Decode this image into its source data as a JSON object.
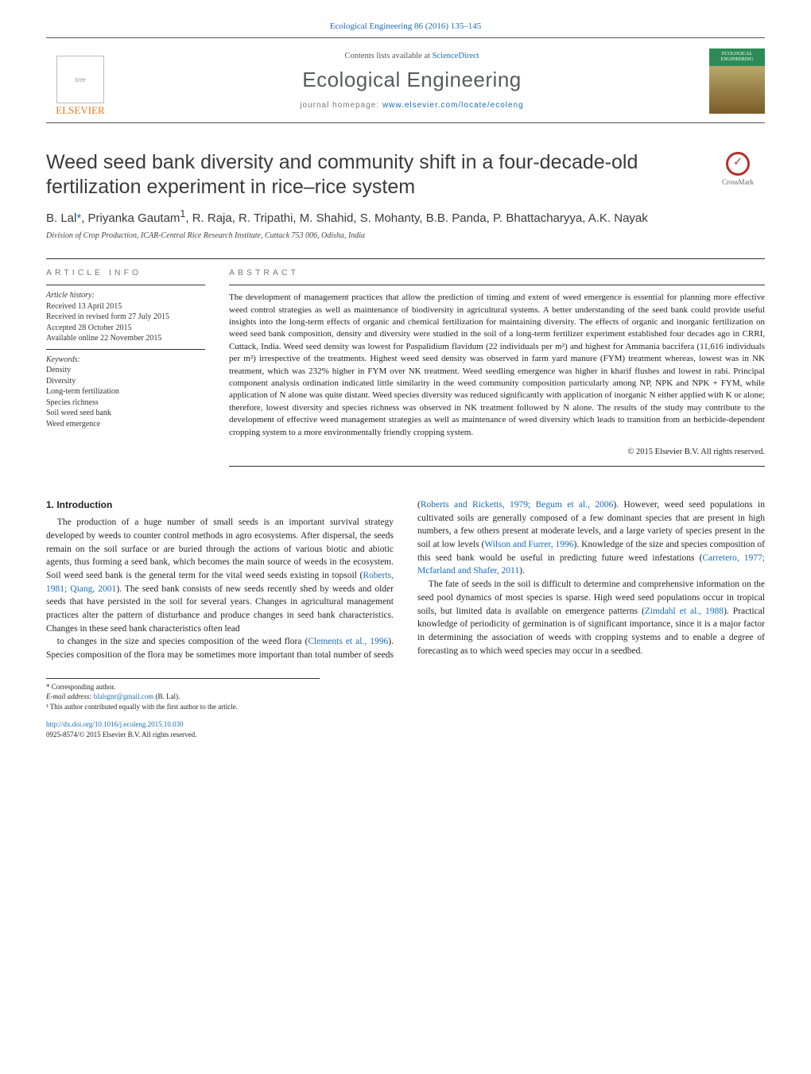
{
  "journal_ref": "Ecological Engineering 86 (2016) 135–145",
  "masthead": {
    "publisher_name": "ELSEVIER",
    "contents_prefix": "Contents lists available at ",
    "contents_link": "ScienceDirect",
    "journal_name": "Ecological Engineering",
    "homepage_prefix": "journal homepage: ",
    "homepage_url": "www.elsevier.com/locate/ecoleng",
    "cover_label": "ECOLOGICAL ENGINEERING"
  },
  "title": "Weed seed bank diversity and community shift in a four-decade-old fertilization experiment in rice–rice system",
  "crossmark_label": "CrossMark",
  "authors_html": "B. Lal<span class='corr'>*</span>, Priyanka Gautam<sup>1</sup>, R. Raja, R. Tripathi, M. Shahid, S. Mohanty, B.B. Panda, P. Bhattacharyya, A.K. Nayak",
  "affiliation": "Division of Crop Production, ICAR-Central Rice Research Institute, Cuttack 753 006, Odisha, India",
  "article_info": {
    "header": "ARTICLE INFO",
    "history_label": "Article history:",
    "history": [
      "Received 13 April 2015",
      "Received in revised form 27 July 2015",
      "Accepted 28 October 2015",
      "Available online 22 November 2015"
    ],
    "keywords_label": "Keywords:",
    "keywords": [
      "Density",
      "Diversity",
      "Long-term fertilization",
      "Species richness",
      "Soil weed seed bank",
      "Weed emergence"
    ]
  },
  "abstract": {
    "header": "ABSTRACT",
    "text": "The development of management practices that allow the prediction of timing and extent of weed emergence is essential for planning more effective weed control strategies as well as maintenance of biodiversity in agricultural systems. A better understanding of the seed bank could provide useful insights into the long-term effects of organic and chemical fertilization for maintaining diversity. The effects of organic and inorganic fertilization on weed seed bank composition, density and diversity were studied in the soil of a long-term fertilizer experiment established four decades ago in CRRI, Cuttack, India. Weed seed density was lowest for Paspalidium flavidum (22 individuals per m²) and highest for Ammania baccifera (11,616 individuals per m²) irrespective of the treatments. Highest weed seed density was observed in farm yard manure (FYM) treatment whereas, lowest was in NK treatment, which was 232% higher in FYM over NK treatment. Weed seedling emergence was higher in kharif flushes and lowest in rabi. Principal component analysis ordination indicated little similarity in the weed community composition particularly among NP, NPK and NPK + FYM, while application of N alone was quite distant. Weed species diversity was reduced significantly with application of inorganic N either applied with K or alone; therefore, lowest diversity and species richness was observed in NK treatment followed by N alone. The results of the study may contribute to the development of effective weed management strategies as well as maintenance of weed diversity which leads to transition from an herbicide-dependent cropping system to a more environmentally friendly cropping system.",
    "copyright": "© 2015 Elsevier B.V. All rights reserved."
  },
  "intro": {
    "heading": "1. Introduction",
    "p1_a": "The production of a huge number of small seeds is an important survival strategy developed by weeds to counter control methods in agro ecosystems. After dispersal, the seeds remain on the soil surface or are buried through the actions of various biotic and abiotic agents, thus forming a seed bank, which becomes the main source of weeds in the ecosystem. Soil weed seed bank is the general term for the vital weed seeds existing in topsoil (",
    "p1_cite1": "Roberts, 1981; Qiang, 2001",
    "p1_b": "). The seed bank consists of new seeds recently shed by weeds and older seeds that have persisted in the soil for several years. Changes in agricultural management practices alter the pattern of disturbance and produce changes in seed bank characteristics. Changes in these seed bank characteristics often lead",
    "p2_a": "to changes in the size and species composition of the weed flora (",
    "p2_cite1": "Clements et al., 1996",
    "p2_b": "). Species composition of the flora may be sometimes more important than total number of seeds (",
    "p2_cite2": "Roberts and Ricketts, 1979; Begum et al., 2006",
    "p2_c": "). However, weed seed populations in cultivated soils are generally composed of a few dominant species that are present in high numbers, a few others present at moderate levels, and a large variety of species present in the soil at low levels (",
    "p2_cite3": "Wilson and Furrer, 1996",
    "p2_d": "). Knowledge of the size and species composition of this seed bank would be useful in predicting future weed infestations (",
    "p2_cite4": "Carretero, 1977; Mcfarland and Shafer, 2011",
    "p2_e": ").",
    "p3_a": "The fate of seeds in the soil is difficult to determine and comprehensive information on the seed pool dynamics of most species is sparse. High weed seed populations occur in tropical soils, but limited data is available on emergence patterns (",
    "p3_cite1": "Zimdahl et al., 1988",
    "p3_b": "). Practical knowledge of periodicity of germination is of significant importance, since it is a major factor in determining the association of weeds with cropping systems and to enable a degree of forecasting as to which weed species may occur in a seedbed."
  },
  "footnotes": {
    "corr_label": "* Corresponding author.",
    "email_label": "E-mail address: ",
    "email": "blalsgnr@gmail.com",
    "email_author": " (B. Lal).",
    "note1": "¹ This author contributed equally with the first author to the article."
  },
  "doi": {
    "url": "http://dx.doi.org/10.1016/j.ecoleng.2015.10.030",
    "issn": "0925-8574/© 2015 Elsevier B.V. All rights reserved."
  },
  "colors": {
    "link": "#1a6bb8",
    "publisher_orange": "#e67822",
    "crossmark_red": "#b5302a",
    "cover_green": "#2e8b57"
  }
}
